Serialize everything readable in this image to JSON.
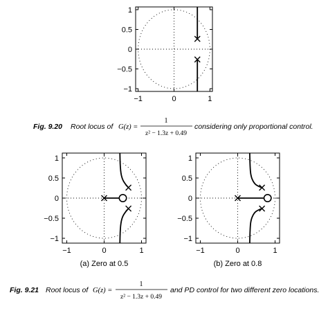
{
  "chart_data": [
    {
      "type": "root-locus",
      "xlim": [
        -1,
        1
      ],
      "ylim": [
        -1,
        1
      ],
      "xticks": [
        -1,
        0,
        1
      ],
      "yticks": [
        1,
        0.5,
        0,
        -0.5,
        -1
      ],
      "xtick_labels": [
        "−1",
        "0",
        "1"
      ],
      "ytick_labels": [
        "1",
        "0.5",
        "0",
        "−0.5",
        "−1"
      ],
      "unit_circle": true,
      "poles": [
        {
          "x": 0.65,
          "y": 0.26
        },
        {
          "x": 0.65,
          "y": -0.26
        }
      ],
      "zeros": [],
      "branches": [
        [
          [
            0.65,
            0.26
          ],
          [
            0.65,
            1.2
          ]
        ],
        [
          [
            0.65,
            -0.26
          ],
          [
            0.65,
            -1.2
          ]
        ]
      ]
    },
    {
      "type": "root-locus",
      "subtitle": "(a) Zero at 0.5",
      "xlim": [
        -1,
        1
      ],
      "ylim": [
        -1,
        1
      ],
      "xticks": [
        -1,
        0,
        1
      ],
      "yticks": [
        1,
        0.5,
        0,
        -0.5,
        -1
      ],
      "xtick_labels": [
        "−1",
        "0",
        "1"
      ],
      "ytick_labels": [
        "1",
        "0.5",
        "0",
        "−0.5",
        "−1"
      ],
      "unit_circle": true,
      "poles": [
        {
          "x": 0.65,
          "y": 0.26
        },
        {
          "x": 0.65,
          "y": -0.26
        },
        {
          "x": 0,
          "y": 0
        }
      ],
      "zeros": [
        {
          "x": 0.5,
          "y": 0
        }
      ],
      "branches": [
        [
          [
            0.65,
            0.26
          ],
          [
            0.56,
            0.35
          ],
          [
            0.47,
            0.5
          ],
          [
            0.43,
            0.75
          ],
          [
            0.42,
            1.2
          ]
        ],
        [
          [
            0.65,
            -0.26
          ],
          [
            0.56,
            -0.35
          ],
          [
            0.47,
            -0.5
          ],
          [
            0.43,
            -0.75
          ],
          [
            0.42,
            -1.2
          ]
        ],
        [
          [
            0,
            0
          ],
          [
            0.45,
            0
          ]
        ]
      ]
    },
    {
      "type": "root-locus",
      "subtitle": "(b) Zero at 0.8",
      "xlim": [
        -1,
        1
      ],
      "ylim": [
        -1,
        1
      ],
      "xticks": [
        -1,
        0,
        1
      ],
      "yticks": [
        1,
        0.5,
        0,
        -0.5,
        -1
      ],
      "xtick_labels": [
        "−1",
        "0",
        "1"
      ],
      "ytick_labels": [
        "1",
        "0.5",
        "0",
        "−0.5",
        "−1"
      ],
      "unit_circle": true,
      "poles": [
        {
          "x": 0.65,
          "y": 0.26
        },
        {
          "x": 0.65,
          "y": -0.26
        },
        {
          "x": 0,
          "y": 0
        }
      ],
      "zeros": [
        {
          "x": 0.8,
          "y": 0
        }
      ],
      "branches": [
        [
          [
            0.65,
            0.26
          ],
          [
            0.53,
            0.3
          ],
          [
            0.43,
            0.38
          ],
          [
            0.35,
            0.55
          ],
          [
            0.33,
            0.8
          ],
          [
            0.32,
            1.2
          ]
        ],
        [
          [
            0.65,
            -0.26
          ],
          [
            0.53,
            -0.3
          ],
          [
            0.43,
            -0.38
          ],
          [
            0.35,
            -0.55
          ],
          [
            0.33,
            -0.8
          ],
          [
            0.32,
            -1.2
          ]
        ],
        [
          [
            0,
            0
          ],
          [
            0.75,
            0
          ]
        ]
      ]
    }
  ],
  "captions": {
    "fig20": {
      "label": "Fig. 9.20",
      "pre": "Root locus of",
      "lhs": "G(z) =",
      "num": "1",
      "den": "z² − 1.3z + 0.49",
      "post": "considering only proportional control."
    },
    "fig21": {
      "label": "Fig. 9.21",
      "pre": "Root locus of",
      "lhs": "G(z) =",
      "num": "1",
      "den": "z² − 1.3z + 0.49",
      "post": "and PD control for two different zero locations."
    }
  }
}
